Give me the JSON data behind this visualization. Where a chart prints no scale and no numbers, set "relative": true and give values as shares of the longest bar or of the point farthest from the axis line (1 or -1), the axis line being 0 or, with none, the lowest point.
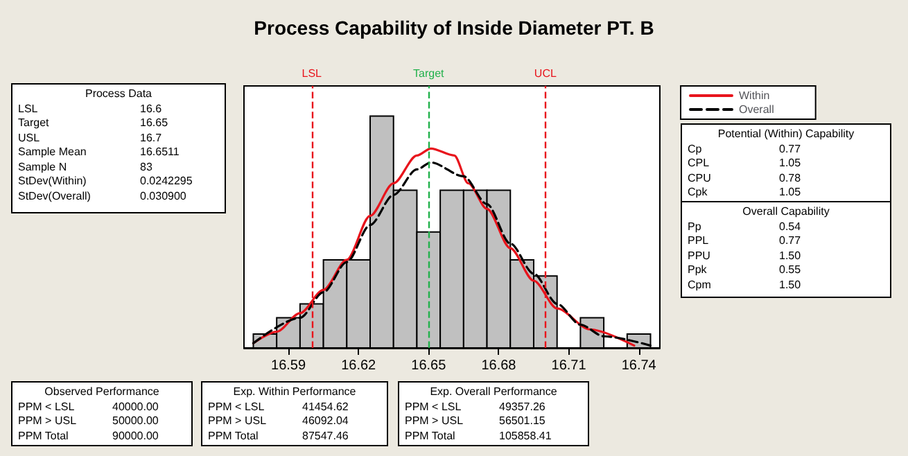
{
  "chart_data": {
    "type": "histogram",
    "title": "Process Capability of Inside Diameter PT. B",
    "relative": true,
    "xlim": [
      16.571,
      16.749
    ],
    "xticks": [
      16.59,
      16.62,
      16.65,
      16.68,
      16.71,
      16.74
    ],
    "series": [
      {
        "color": "#c0c0c0",
        "bins": [
          16.575,
          16.585,
          16.595,
          16.605,
          16.615,
          16.625,
          16.635,
          16.645,
          16.655,
          16.665,
          16.675,
          16.685,
          16.695,
          16.705,
          16.715,
          16.725,
          16.735,
          16.745
        ],
        "values": [
          0.06,
          0.13,
          0.19,
          0.38,
          0.38,
          1.0,
          0.68,
          0.5,
          0.68,
          0.68,
          0.68,
          0.38,
          0.31,
          0,
          0.13,
          0,
          0.06
        ]
      },
      {
        "type": "line",
        "name": "Within",
        "color": "#e8141c",
        "line_style": "solid",
        "x": [
          16.575,
          16.585,
          16.595,
          16.605,
          16.615,
          16.625,
          16.635,
          16.645,
          16.651,
          16.661,
          16.667,
          16.675,
          16.685,
          16.695,
          16.705,
          16.719,
          16.738
        ],
        "values": [
          0.02,
          0.07,
          0.15,
          0.25,
          0.38,
          0.57,
          0.71,
          0.83,
          0.86,
          0.83,
          0.71,
          0.6,
          0.43,
          0.29,
          0.17,
          0.08,
          0.01
        ]
      },
      {
        "type": "line",
        "name": "Overall",
        "color": "#000000",
        "line_style": "dashed",
        "x": [
          16.575,
          16.595,
          16.605,
          16.615,
          16.625,
          16.635,
          16.645,
          16.651,
          16.665,
          16.675,
          16.685,
          16.695,
          16.705,
          16.715,
          16.725,
          16.745
        ],
        "values": [
          0.02,
          0.13,
          0.24,
          0.37,
          0.53,
          0.66,
          0.77,
          0.8,
          0.74,
          0.62,
          0.45,
          0.32,
          0.19,
          0.1,
          0.05,
          0.01
        ]
      }
    ],
    "ref_lines": [
      {
        "axis": "x",
        "value": 16.6,
        "label": "LSL",
        "color": "#e8141c",
        "line_style": "dashed"
      },
      {
        "axis": "x",
        "value": 16.65,
        "label": "Target",
        "color": "#22b14c",
        "line_style": "dashed"
      },
      {
        "axis": "x",
        "value": 16.7,
        "label": "UCL",
        "color": "#e8141c",
        "line_style": "dashed"
      }
    ],
    "legend": "top right",
    "annotations": [
      "Process Data",
      "LSL 16.6",
      "Target 16.65",
      "USL 16.7",
      "Sample Mean 16.6511",
      "Sample N 83",
      "StDev(Within) 0.0242295",
      "StDev(Overall) 0.030900",
      "Potential (Within) Capability",
      "Cp 0.77",
      "CPL 1.05",
      "CPU 0.78",
      "Cpk 1.05",
      "Overall Capability",
      "Pp 0.54",
      "PPL 0.77",
      "PPU 1.50",
      "Ppk 0.55",
      "Cpm 1.50",
      "Observed Performance",
      "PPM < LSL 40000.00",
      "PPM > USL 50000.00",
      "PPM Total 90000.00",
      "Exp. Within Performance",
      "PPM < LSL 41454.62",
      "PPM > USL 46092.04",
      "PPM Total 87547.46",
      "Exp. Overall Performance",
      "PPM < LSL 49357.26",
      "PPM > USL 56501.15",
      "PPM Total 105858.41"
    ]
  }
}
